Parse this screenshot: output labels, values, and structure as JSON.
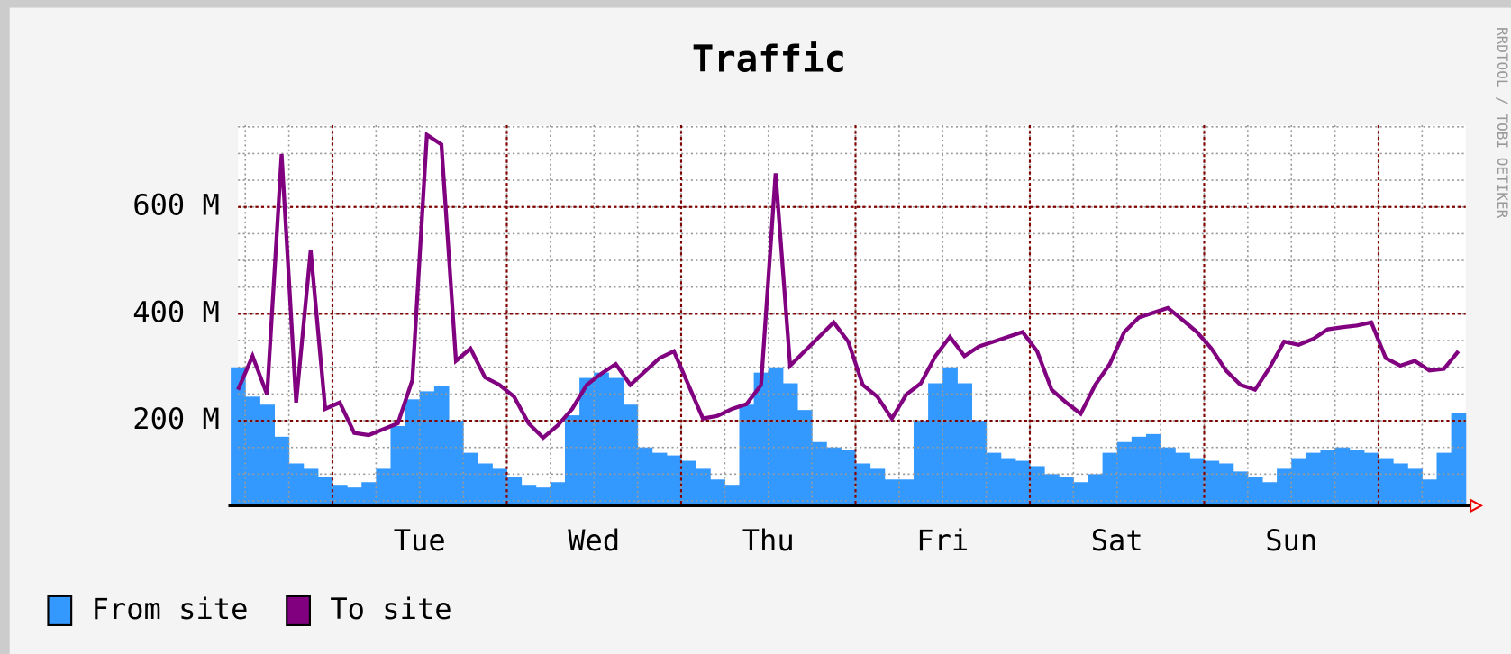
{
  "chart_data": {
    "type": "area_line",
    "title": "Traffic",
    "watermark": "RRDTOOL / TOBI OETIKER",
    "xlim": [
      -13,
      156
    ],
    "xticks": [
      {
        "value": 12,
        "label": "Tue"
      },
      {
        "value": 36,
        "label": "Wed"
      },
      {
        "value": 60,
        "label": "Thu"
      },
      {
        "value": 84,
        "label": "Fri"
      },
      {
        "value": 108,
        "label": "Sat"
      },
      {
        "value": 132,
        "label": "Sun"
      }
    ],
    "xmajorticks": [
      0,
      24,
      48,
      72,
      96,
      120,
      144
    ],
    "xminorticks": [
      -12,
      -6,
      0,
      6,
      12,
      18,
      24,
      30,
      36,
      42,
      48,
      54,
      60,
      66,
      72,
      78,
      84,
      90,
      96,
      102,
      108,
      114,
      120,
      126,
      132,
      138,
      144,
      150
    ],
    "ylim": [
      41,
      753
    ],
    "yticks": [
      {
        "value": 200,
        "label": "200 M"
      },
      {
        "value": 400,
        "label": "400 M"
      },
      {
        "value": 600,
        "label": "600 M"
      }
    ],
    "yminorticks": [
      50,
      100,
      150,
      200,
      250,
      300,
      350,
      400,
      450,
      500,
      550,
      600,
      650,
      700,
      750
    ],
    "grid": true,
    "x": [
      -13,
      -11,
      -9,
      -7,
      -5,
      -3,
      -1,
      1,
      3,
      5,
      7,
      9,
      11,
      13,
      15,
      17,
      19,
      21,
      23,
      25,
      27,
      29,
      31,
      33,
      35,
      37,
      39,
      41,
      43,
      45,
      47,
      49,
      51,
      53,
      55,
      57,
      59,
      61,
      63,
      65,
      67,
      69,
      71,
      73,
      75,
      77,
      79,
      81,
      83,
      85,
      87,
      89,
      91,
      93,
      95,
      97,
      99,
      101,
      103,
      105,
      107,
      109,
      111,
      113,
      115,
      117,
      119,
      121,
      123,
      125,
      127,
      129,
      131,
      133,
      135,
      137,
      139,
      141,
      143,
      145,
      147,
      149,
      151,
      153,
      155
    ],
    "series": [
      {
        "name": "From site",
        "color": "#3399ff",
        "style": "area",
        "values": [
          300,
          245,
          230,
          170,
          120,
          110,
          95,
          80,
          75,
          85,
          110,
          190,
          240,
          255,
          265,
          200,
          140,
          120,
          110,
          95,
          80,
          75,
          85,
          210,
          280,
          290,
          280,
          230,
          150,
          140,
          135,
          125,
          110,
          90,
          80,
          230,
          290,
          300,
          270,
          220,
          160,
          150,
          145,
          120,
          110,
          90,
          90,
          200,
          270,
          300,
          270,
          200,
          140,
          130,
          125,
          115,
          100,
          95,
          85,
          100,
          140,
          160,
          170,
          175,
          150,
          140,
          130,
          125,
          120,
          105,
          95,
          85,
          110,
          130,
          140,
          145,
          150,
          145,
          140,
          130,
          120,
          110,
          90,
          140,
          215
        ]
      },
      {
        "name": "To site",
        "color": "#800080",
        "style": "line",
        "values": [
          258,
          321,
          249,
          699,
          234,
          519,
          222,
          234,
          177,
          173,
          184,
          195,
          276,
          735,
          717,
          312,
          335,
          281,
          267,
          245,
          195,
          168,
          191,
          222,
          267,
          288,
          306,
          267,
          292,
          317,
          330,
          267,
          204,
          209,
          222,
          231,
          267,
          663,
          303,
          330,
          357,
          384,
          348,
          267,
          245,
          204,
          249,
          270,
          321,
          357,
          321,
          339,
          348,
          357,
          366,
          330,
          258,
          234,
          213,
          267,
          306,
          366,
          393,
          402,
          411,
          389,
          366,
          335,
          294,
          267,
          258,
          299,
          348,
          342,
          353,
          371,
          375,
          378,
          384,
          317,
          303,
          312,
          294,
          297,
          330
        ]
      }
    ]
  }
}
